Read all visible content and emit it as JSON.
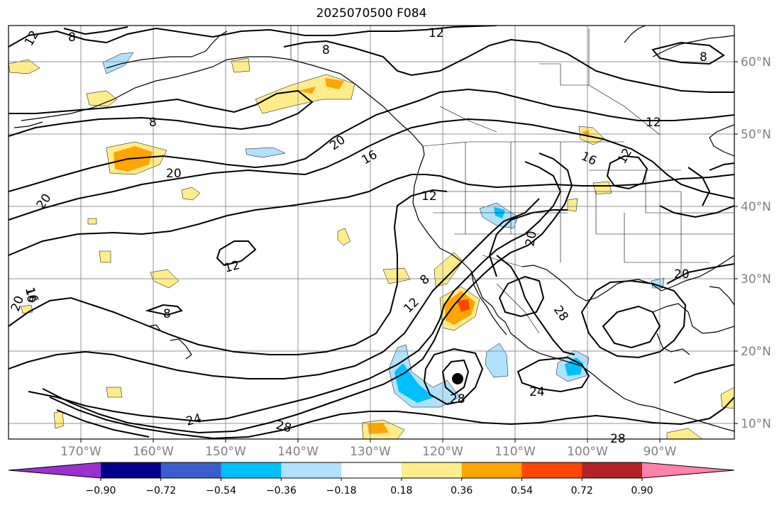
{
  "title": "2025070500 F084",
  "lat_labels": [
    "60°N",
    "50°N",
    "40°N",
    "30°N",
    "20°N",
    "10°N"
  ],
  "lon_labels": [
    "170°W",
    "160°W",
    "150°W",
    "140°W",
    "130°W",
    "120°W",
    "110°W",
    "100°W",
    "90°W"
  ],
  "colorbar": {
    "ticks": [
      "−0.90",
      "−0.72",
      "−0.54",
      "−0.36",
      "−0.18",
      "0.18",
      "0.36",
      "0.54",
      "0.72",
      "0.90"
    ],
    "colors": [
      "#9932cc",
      "#00008b",
      "#3a5fcd",
      "#00bfff",
      "#b0e2ff",
      "#ffffff",
      "#ffec8b",
      "#ffa500",
      "#ff4500",
      "#b22222",
      "#ff82ab"
    ]
  },
  "contour_labels": [
    "12",
    "8",
    "8",
    "8",
    "12",
    "8",
    "20",
    "16",
    "20",
    "20",
    "16",
    "12",
    "12",
    "16",
    "12",
    "20",
    "12",
    "8",
    "8",
    "12",
    "28",
    "20",
    "16",
    "20",
    "24",
    "28",
    "28",
    "24",
    "28",
    "20"
  ],
  "map": {
    "land_outline": "coastlines",
    "contour_color": "#000000",
    "grid_color": "#808080"
  }
}
